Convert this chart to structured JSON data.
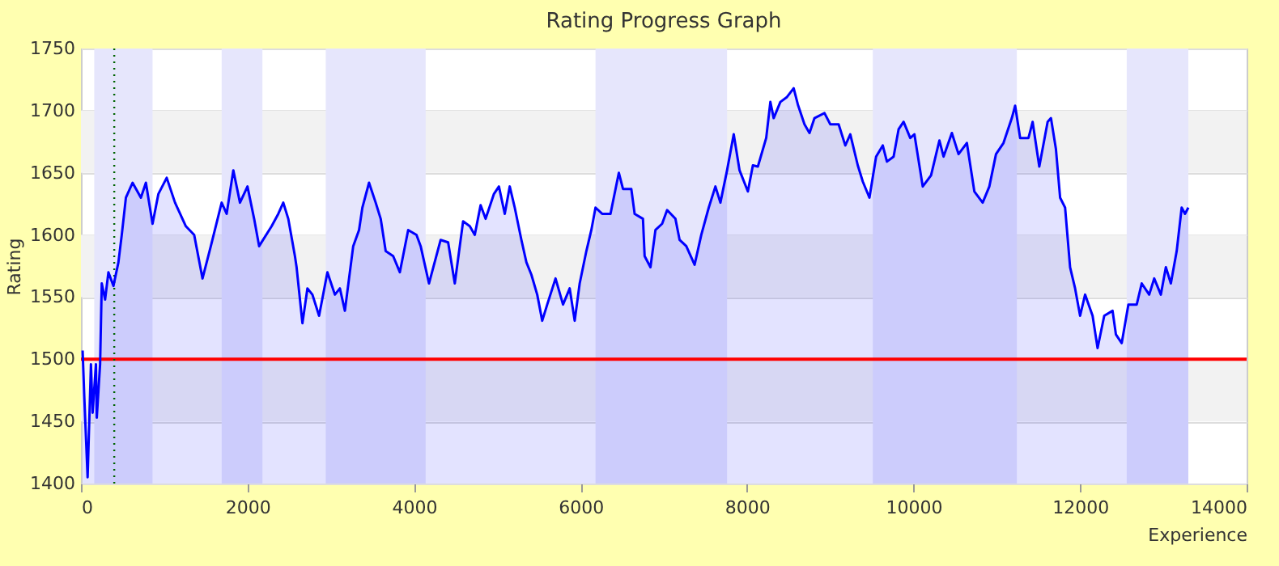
{
  "chart_data": {
    "type": "area",
    "title": "Rating Progress Graph",
    "xlabel": "Experience",
    "ylabel": "Rating",
    "x": [
      20,
      40,
      80,
      120,
      140,
      180,
      190,
      230,
      250,
      290,
      330,
      390,
      450,
      490,
      540,
      620,
      720,
      780,
      860,
      930,
      1030,
      1130,
      1260,
      1360,
      1460,
      1560,
      1690,
      1750,
      1830,
      1910,
      2000,
      2080,
      2140,
      2290,
      2370,
      2430,
      2490,
      2570,
      2590,
      2660,
      2720,
      2780,
      2860,
      2960,
      3050,
      3110,
      3170,
      3270,
      3340,
      3380,
      3460,
      3540,
      3600,
      3660,
      3750,
      3830,
      3930,
      4030,
      4080,
      4180,
      4320,
      4410,
      4490,
      4590,
      4670,
      4730,
      4800,
      4860,
      4960,
      5020,
      5090,
      5150,
      5210,
      5290,
      5350,
      5410,
      5480,
      5540,
      5600,
      5700,
      5790,
      5870,
      5930,
      5990,
      6070,
      6130,
      6180,
      6260,
      6360,
      6460,
      6510,
      6610,
      6650,
      6750,
      6770,
      6840,
      6900,
      6980,
      7040,
      7140,
      7190,
      7270,
      7370,
      7450,
      7540,
      7620,
      7680,
      7760,
      7840,
      7910,
      8010,
      8070,
      8130,
      8230,
      8280,
      8320,
      8400,
      8480,
      8560,
      8610,
      8690,
      8750,
      8810,
      8930,
      9000,
      9100,
      9180,
      9240,
      9330,
      9390,
      9470,
      9550,
      9630,
      9680,
      9760,
      9820,
      9880,
      9960,
      10010,
      10110,
      10210,
      10310,
      10360,
      10460,
      10540,
      10640,
      10730,
      10830,
      10910,
      10990,
      11080,
      11180,
      11220,
      11280,
      11380,
      11430,
      11510,
      11610,
      11650,
      11710,
      11760,
      11820,
      11880,
      11940,
      12000,
      12060,
      12150,
      12210,
      12290,
      12390,
      12430,
      12500,
      12580,
      12680,
      12740,
      12830,
      12890,
      12970,
      13030,
      13090,
      13160,
      13220,
      13260,
      13300
    ],
    "series": [
      {
        "color": "#0000ff",
        "values": [
          1507,
          1470,
          1405,
          1496,
          1457,
          1496,
          1453,
          1496,
          1561,
          1548,
          1570,
          1559,
          1578,
          1600,
          1630,
          1642,
          1630,
          1642,
          1609,
          1633,
          1646,
          1626,
          1607,
          1600,
          1565,
          1591,
          1626,
          1617,
          1652,
          1626,
          1639,
          1613,
          1591,
          1607,
          1617,
          1626,
          1613,
          1583,
          1574,
          1529,
          1557,
          1552,
          1535,
          1570,
          1552,
          1557,
          1539,
          1591,
          1604,
          1622,
          1642,
          1626,
          1613,
          1587,
          1583,
          1570,
          1604,
          1600,
          1591,
          1561,
          1596,
          1594,
          1561,
          1611,
          1607,
          1600,
          1624,
          1613,
          1633,
          1639,
          1617,
          1639,
          1622,
          1596,
          1578,
          1568,
          1552,
          1531,
          1544,
          1565,
          1544,
          1557,
          1531,
          1561,
          1587,
          1604,
          1622,
          1617,
          1617,
          1650,
          1637,
          1637,
          1617,
          1613,
          1583,
          1574,
          1604,
          1609,
          1620,
          1613,
          1596,
          1591,
          1576,
          1600,
          1622,
          1639,
          1626,
          1652,
          1681,
          1652,
          1635,
          1656,
          1655,
          1678,
          1707,
          1694,
          1707,
          1711,
          1718,
          1705,
          1689,
          1682,
          1694,
          1698,
          1689,
          1689,
          1672,
          1681,
          1656,
          1643,
          1630,
          1663,
          1672,
          1659,
          1663,
          1685,
          1691,
          1678,
          1681,
          1639,
          1648,
          1676,
          1663,
          1682,
          1665,
          1674,
          1635,
          1626,
          1639,
          1665,
          1674,
          1694,
          1704,
          1678,
          1678,
          1691,
          1655,
          1691,
          1694,
          1669,
          1630,
          1622,
          1574,
          1557,
          1535,
          1552,
          1535,
          1509,
          1535,
          1539,
          1520,
          1513,
          1544,
          1544,
          1561,
          1552,
          1565,
          1552,
          1574,
          1561,
          1587,
          1622,
          1617,
          1622
        ]
      }
    ],
    "xlim": [
      0,
      14000
    ],
    "xticks": [
      0,
      2000,
      4000,
      6000,
      8000,
      10000,
      12000,
      14000
    ],
    "ylim": [
      1400,
      1750
    ],
    "yticks": [
      1400,
      1450,
      1500,
      1550,
      1600,
      1650,
      1700,
      1750
    ],
    "grid": "y",
    "ref_lines": [
      {
        "axis": "y",
        "value": 1500,
        "color": "#ff0000",
        "line_style": "solid"
      },
      {
        "axis": "x",
        "value": 400,
        "color": "#006400",
        "line_style": "dotted"
      }
    ],
    "bands": [
      {
        "axis": "x",
        "from": 160,
        "to": 860,
        "color": "#e6e6fc"
      },
      {
        "axis": "x",
        "from": 1690,
        "to": 2180,
        "color": "#e6e6fc"
      },
      {
        "axis": "x",
        "from": 2940,
        "to": 4140,
        "color": "#e6e6fc"
      },
      {
        "axis": "x",
        "from": 6180,
        "to": 7760,
        "color": "#e6e6fc"
      },
      {
        "axis": "x",
        "from": 9510,
        "to": 11240,
        "color": "#e6e6fc"
      },
      {
        "axis": "x",
        "from": 12560,
        "to": 13300,
        "color": "#e6e6fc"
      }
    ]
  }
}
